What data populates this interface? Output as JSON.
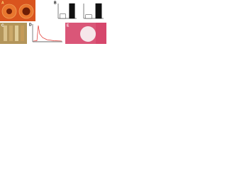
{
  "figure": {
    "panels": [
      {
        "label": "A"
      },
      {
        "label": "B",
        "charts": [
          {
            "type": "bar",
            "values": [
              0.3,
              1.0
            ],
            "colors": [
              "#ffffff",
              "#111111"
            ]
          },
          {
            "type": "bar",
            "values": [
              0.25,
              1.0
            ],
            "colors": [
              "#ffffff",
              "#111111"
            ]
          }
        ]
      },
      {
        "label": "C"
      },
      {
        "label": "D"
      },
      {
        "label": "E"
      }
    ]
  }
}
